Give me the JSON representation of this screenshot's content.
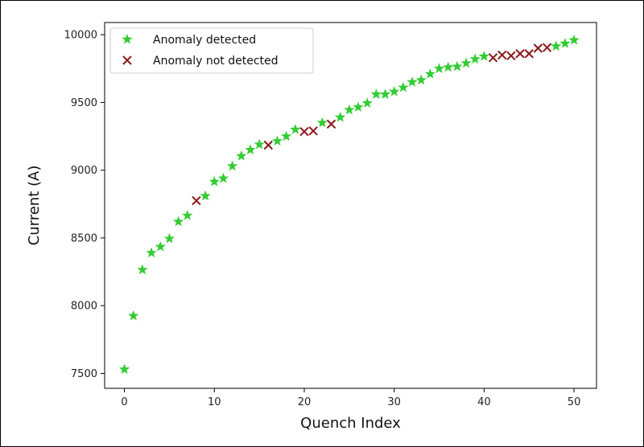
{
  "chart_data": {
    "type": "scatter",
    "title": "",
    "xlabel": "Quench Index",
    "ylabel": "Current (A)",
    "xlim": [
      -2.2,
      52.5
    ],
    "ylim": [
      7390,
      10090
    ],
    "xticks": [
      0,
      10,
      20,
      30,
      40,
      50
    ],
    "yticks": [
      7500,
      8000,
      8500,
      9000,
      9500,
      10000
    ],
    "grid": false,
    "legend_position": "top-left",
    "series": [
      {
        "name": "Anomaly detected",
        "marker": "star",
        "color": "#33cc33",
        "points": [
          [
            0,
            7530
          ],
          [
            1,
            7925
          ],
          [
            2,
            8265
          ],
          [
            3,
            8390
          ],
          [
            4,
            8435
          ],
          [
            5,
            8495
          ],
          [
            6,
            8620
          ],
          [
            7,
            8665
          ],
          [
            9,
            8810
          ],
          [
            10,
            8915
          ],
          [
            11,
            8940
          ],
          [
            12,
            9030
          ],
          [
            13,
            9105
          ],
          [
            14,
            9150
          ],
          [
            15,
            9190
          ],
          [
            17,
            9215
          ],
          [
            18,
            9250
          ],
          [
            19,
            9300
          ],
          [
            22,
            9350
          ],
          [
            24,
            9390
          ],
          [
            25,
            9445
          ],
          [
            26,
            9465
          ],
          [
            27,
            9495
          ],
          [
            28,
            9560
          ],
          [
            29,
            9560
          ],
          [
            30,
            9580
          ],
          [
            31,
            9610
          ],
          [
            32,
            9650
          ],
          [
            33,
            9665
          ],
          [
            34,
            9710
          ],
          [
            35,
            9750
          ],
          [
            36,
            9760
          ],
          [
            37,
            9765
          ],
          [
            38,
            9790
          ],
          [
            39,
            9820
          ],
          [
            40,
            9840
          ],
          [
            48,
            9915
          ],
          [
            49,
            9935
          ],
          [
            50,
            9960
          ]
        ]
      },
      {
        "name": "Anomaly not detected",
        "marker": "x",
        "color": "#8b1a1a",
        "points": [
          [
            8,
            8775
          ],
          [
            16,
            9185
          ],
          [
            20,
            9285
          ],
          [
            21,
            9290
          ],
          [
            23,
            9340
          ],
          [
            41,
            9830
          ],
          [
            42,
            9850
          ],
          [
            43,
            9845
          ],
          [
            44,
            9860
          ],
          [
            45,
            9860
          ],
          [
            46,
            9900
          ],
          [
            47,
            9905
          ]
        ]
      }
    ]
  }
}
